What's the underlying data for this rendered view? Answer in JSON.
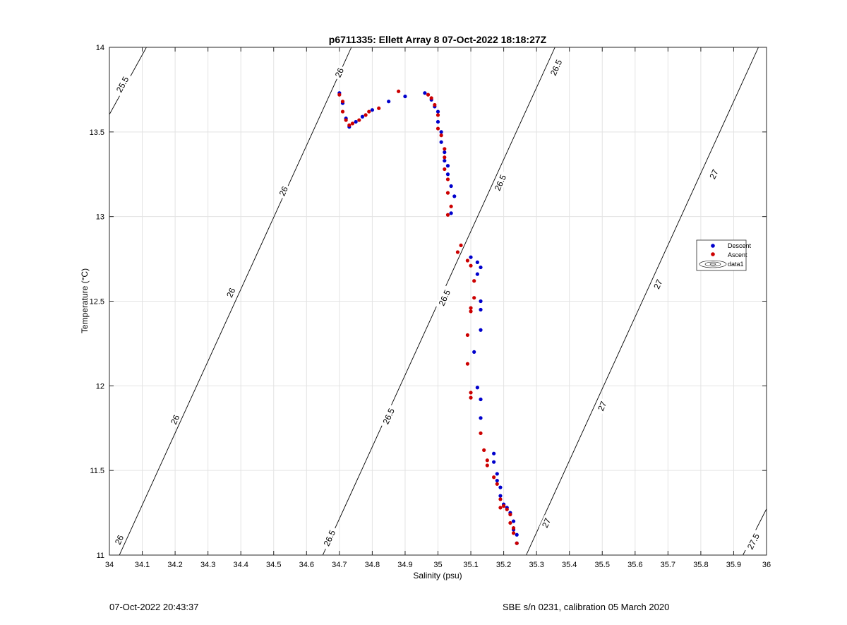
{
  "chart_data": {
    "type": "scatter",
    "title": "p6711335: Ellett Array 8 07-Oct-2022 18:18:27Z",
    "xlabel": "Salinity (psu)",
    "ylabel": "Temperature (°C)",
    "xlim": [
      34,
      36
    ],
    "ylim": [
      11,
      14
    ],
    "xticks": [
      "34",
      "34.1",
      "34.2",
      "34.3",
      "34.4",
      "34.5",
      "34.6",
      "34.7",
      "34.8",
      "34.9",
      "35",
      "35.1",
      "35.2",
      "35.3",
      "35.4",
      "35.5",
      "35.6",
      "35.7",
      "35.8",
      "35.9",
      "36"
    ],
    "yticks": [
      "11",
      "11.5",
      "12",
      "12.5",
      "13",
      "13.5",
      "14"
    ],
    "grid": true,
    "legend_position": "right",
    "legend": [
      "Descent",
      "Ascent",
      "data1"
    ],
    "colors": {
      "descent": "#0000cc",
      "ascent": "#cc0000",
      "contour": "#000000",
      "grid": "#e3e3e3"
    },
    "series": [
      {
        "name": "Descent",
        "points": [
          [
            34.7,
            13.73
          ],
          [
            34.71,
            13.67
          ],
          [
            34.72,
            13.58
          ],
          [
            34.73,
            13.53
          ],
          [
            34.75,
            13.56
          ],
          [
            34.77,
            13.59
          ],
          [
            34.8,
            13.63
          ],
          [
            34.85,
            13.68
          ],
          [
            34.9,
            13.71
          ],
          [
            34.96,
            13.73
          ],
          [
            34.98,
            13.69
          ],
          [
            34.99,
            13.65
          ],
          [
            35.0,
            13.62
          ],
          [
            35.0,
            13.56
          ],
          [
            35.01,
            13.5
          ],
          [
            35.01,
            13.44
          ],
          [
            35.02,
            13.38
          ],
          [
            35.02,
            13.33
          ],
          [
            35.03,
            13.3
          ],
          [
            35.03,
            13.25
          ],
          [
            35.04,
            13.18
          ],
          [
            35.05,
            13.12
          ],
          [
            35.04,
            13.02
          ],
          [
            35.1,
            12.76
          ],
          [
            35.12,
            12.73
          ],
          [
            35.13,
            12.7
          ],
          [
            35.12,
            12.66
          ],
          [
            35.13,
            12.5
          ],
          [
            35.13,
            12.45
          ],
          [
            35.13,
            12.33
          ],
          [
            35.11,
            12.2
          ],
          [
            35.12,
            11.99
          ],
          [
            35.13,
            11.92
          ],
          [
            35.13,
            11.81
          ],
          [
            35.17,
            11.6
          ],
          [
            35.17,
            11.55
          ],
          [
            35.18,
            11.48
          ],
          [
            35.18,
            11.44
          ],
          [
            35.19,
            11.4
          ],
          [
            35.19,
            11.35
          ],
          [
            35.2,
            11.3
          ],
          [
            35.21,
            11.28
          ],
          [
            35.22,
            11.25
          ],
          [
            35.23,
            11.2
          ],
          [
            35.23,
            11.15
          ],
          [
            35.24,
            11.12
          ],
          [
            35.24,
            11.07
          ]
        ]
      },
      {
        "name": "Ascent",
        "points": [
          [
            34.7,
            13.72
          ],
          [
            34.71,
            13.68
          ],
          [
            34.71,
            13.62
          ],
          [
            34.72,
            13.57
          ],
          [
            34.73,
            13.54
          ],
          [
            34.74,
            13.55
          ],
          [
            34.76,
            13.57
          ],
          [
            34.78,
            13.6
          ],
          [
            34.79,
            13.62
          ],
          [
            34.82,
            13.64
          ],
          [
            34.88,
            13.74
          ],
          [
            34.97,
            13.72
          ],
          [
            34.98,
            13.7
          ],
          [
            34.99,
            13.66
          ],
          [
            35.0,
            13.6
          ],
          [
            35.0,
            13.52
          ],
          [
            35.01,
            13.48
          ],
          [
            35.02,
            13.4
          ],
          [
            35.02,
            13.35
          ],
          [
            35.02,
            13.28
          ],
          [
            35.03,
            13.22
          ],
          [
            35.03,
            13.14
          ],
          [
            35.04,
            13.06
          ],
          [
            35.03,
            13.01
          ],
          [
            35.07,
            12.83
          ],
          [
            35.06,
            12.79
          ],
          [
            35.09,
            12.74
          ],
          [
            35.1,
            12.71
          ],
          [
            35.11,
            12.62
          ],
          [
            35.11,
            12.52
          ],
          [
            35.1,
            12.46
          ],
          [
            35.1,
            12.44
          ],
          [
            35.09,
            12.3
          ],
          [
            35.09,
            12.13
          ],
          [
            35.1,
            11.96
          ],
          [
            35.1,
            11.93
          ],
          [
            35.13,
            11.72
          ],
          [
            35.14,
            11.62
          ],
          [
            35.15,
            11.56
          ],
          [
            35.15,
            11.53
          ],
          [
            35.17,
            11.46
          ],
          [
            35.18,
            11.42
          ],
          [
            35.19,
            11.33
          ],
          [
            35.2,
            11.29
          ],
          [
            35.19,
            11.28
          ],
          [
            35.21,
            11.27
          ],
          [
            35.22,
            11.24
          ],
          [
            35.22,
            11.19
          ],
          [
            35.23,
            11.16
          ],
          [
            35.23,
            11.13
          ],
          [
            35.24,
            11.07
          ]
        ]
      }
    ],
    "contours": [
      {
        "level": "25.5",
        "label": "25.5",
        "p1": [
          33.9706,
          13.5
        ],
        "p2": [
          34.1126,
          14.0
        ],
        "label_points": [
          [
            34.04,
            13.78
          ]
        ]
      },
      {
        "level": "26",
        "label": "26",
        "p1": [
          34.0303,
          11.0
        ],
        "p2": [
          34.7365,
          14.0
        ],
        "label_points": [
          [
            34.03,
            11.09
          ],
          [
            34.2,
            11.8
          ],
          [
            34.37,
            12.55
          ],
          [
            34.53,
            13.15
          ],
          [
            34.7,
            13.85
          ]
        ]
      },
      {
        "level": "26.5",
        "label": "26.5",
        "p1": [
          34.6494,
          11.0
        ],
        "p2": [
          35.3561,
          14.0
        ],
        "label_points": [
          [
            34.67,
            11.1
          ],
          [
            34.85,
            11.82
          ],
          [
            35.02,
            12.52
          ],
          [
            35.19,
            13.2
          ],
          [
            35.36,
            13.88
          ]
        ]
      },
      {
        "level": "27",
        "label": "27",
        "p1": [
          35.2686,
          11.0
        ],
        "p2": [
          35.9753,
          14.0
        ],
        "label_points": [
          [
            35.33,
            11.19
          ],
          [
            35.5,
            11.88
          ],
          [
            35.67,
            12.6
          ],
          [
            35.84,
            13.25
          ]
        ]
      },
      {
        "level": "27.5",
        "label": "27.5",
        "p1": [
          35.9282,
          11.0
        ],
        "p2": [
          36.0595,
          11.5
        ],
        "label_points": [
          [
            35.96,
            11.08
          ]
        ]
      }
    ]
  },
  "footer": {
    "timestamp": "07-Oct-2022 20:43:37",
    "sensor": "SBE s/n 0231, calibration 05 March 2020"
  }
}
